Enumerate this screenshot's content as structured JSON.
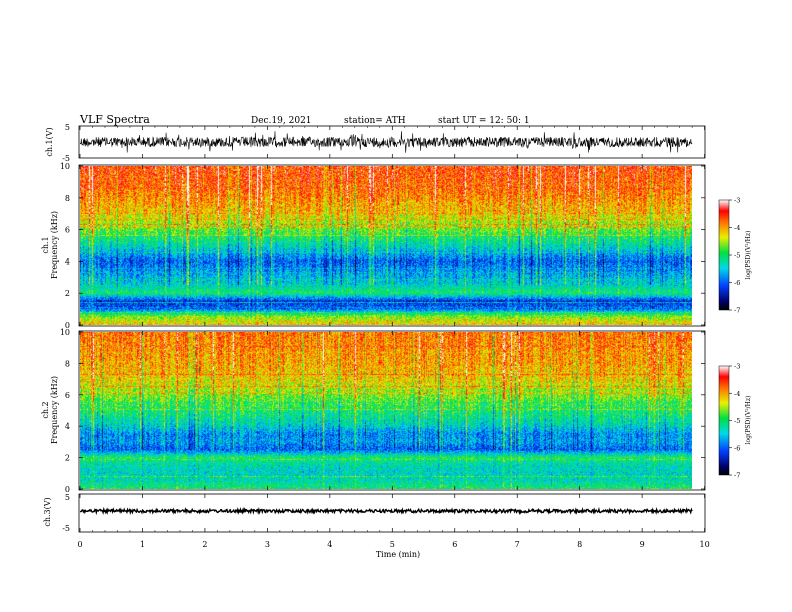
{
  "header": {
    "title": "VLF  Spectra",
    "date": "Dec.19,  2021",
    "station": "station= ATH",
    "start_ut": "start  UT  =    12: 50: 1"
  },
  "panels": {
    "ch1_waveform": {
      "ylabel": "ch.1(V)",
      "yticks": [
        "5",
        "-5"
      ]
    },
    "ch1_spectrogram": {
      "ylabel": "ch.1\nFrequency  (kHz)",
      "ylabel_line1": "ch.1",
      "ylabel_line2": "Frequency  (kHz)",
      "yticks": [
        "10",
        "8",
        "6",
        "4",
        "2",
        "0"
      ]
    },
    "ch2_spectrogram": {
      "ylabel_line1": "ch.2",
      "ylabel_line2": "Frequency  (kHz)",
      "yticks": [
        "10",
        "8",
        "6",
        "4",
        "2",
        "0"
      ]
    },
    "ch3_waveform": {
      "ylabel": "ch.3(V)",
      "yticks": [
        "5",
        "-5"
      ]
    }
  },
  "xaxis": {
    "label": "Time  (min)",
    "ticks": [
      "0",
      "1",
      "2",
      "3",
      "4",
      "5",
      "6",
      "7",
      "8",
      "9",
      "10"
    ]
  },
  "colorbar": {
    "label": "log(PSD)(V²/Hz)",
    "ticks": [
      "-3",
      "-4",
      "-5",
      "-6",
      "-7"
    ]
  },
  "chart_data": [
    {
      "type": "line",
      "title": "VLF  Spectra",
      "panel": "ch.1 waveform",
      "xlabel": "Time  (min)",
      "ylabel": "ch.1(V)",
      "xlim": [
        0,
        10
      ],
      "ylim": [
        -5,
        5
      ],
      "data_extent_min": 9.8,
      "series": [
        {
          "values_description": "",
          "values_range": [
            -2,
            2
          ]
        }
      ]
    },
    {
      "type": "heatmap",
      "panel": "ch.1 spectrogram",
      "xlabel": "Time  (min)",
      "ylabel": "Frequency  (kHz)",
      "xlim": [
        0,
        10
      ],
      "ylim": [
        0,
        10
      ],
      "color_scale": {
        "label": "log(PSD)(V²/Hz)",
        "range": [
          -7,
          -3
        ]
      },
      "profile_by_freq_khz": [
        {
          "f": 0,
          "level": -4.2
        },
        {
          "f": 0.5,
          "level": -4.6
        },
        {
          "f": 1.0,
          "level": -6.0
        },
        {
          "f": 1.5,
          "level": -6.2
        },
        {
          "f": 2.0,
          "level": -5.0
        },
        {
          "f": 2.5,
          "level": -5.4
        },
        {
          "f": 3.0,
          "level": -5.6
        },
        {
          "f": 4.0,
          "level": -6.0
        },
        {
          "f": 5.0,
          "level": -5.3
        },
        {
          "f": 6.0,
          "level": -4.7
        },
        {
          "f": 7.0,
          "level": -4.2
        },
        {
          "f": 8.0,
          "level": -3.9
        },
        {
          "f": 9.0,
          "level": -3.7
        },
        {
          "f": 10.0,
          "level": -3.6
        }
      ]
    },
    {
      "type": "heatmap",
      "panel": "ch.2 spectrogram",
      "xlabel": "Time  (min)",
      "ylabel": "Frequency  (kHz)",
      "xlim": [
        0,
        10
      ],
      "ylim": [
        0,
        10
      ],
      "color_scale": {
        "label": "log(PSD)(V²/Hz)",
        "range": [
          -7,
          -3
        ]
      },
      "profile_by_freq_khz": [
        {
          "f": 0,
          "level": -5.0
        },
        {
          "f": 0.5,
          "level": -5.3
        },
        {
          "f": 1.0,
          "level": -5.4
        },
        {
          "f": 1.5,
          "level": -5.3
        },
        {
          "f": 2.0,
          "level": -5.0
        },
        {
          "f": 2.5,
          "level": -6.0
        },
        {
          "f": 3.0,
          "level": -5.7
        },
        {
          "f": 3.5,
          "level": -5.8
        },
        {
          "f": 4.0,
          "level": -5.4
        },
        {
          "f": 5.0,
          "level": -5.0
        },
        {
          "f": 6.0,
          "level": -4.6
        },
        {
          "f": 7.0,
          "level": -4.2
        },
        {
          "f": 8.0,
          "level": -4.0
        },
        {
          "f": 9.0,
          "level": -3.9
        },
        {
          "f": 10.0,
          "level": -3.8
        }
      ]
    },
    {
      "type": "line",
      "panel": "ch.3 waveform",
      "xlabel": "Time  (min)",
      "ylabel": "ch.3(V)",
      "xlim": [
        0,
        10
      ],
      "ylim": [
        -5,
        5
      ],
      "data_extent_min": 9.8,
      "series": [
        {
          "values_description": "",
          "values_range": [
            -0.3,
            0.3
          ]
        }
      ]
    }
  ]
}
